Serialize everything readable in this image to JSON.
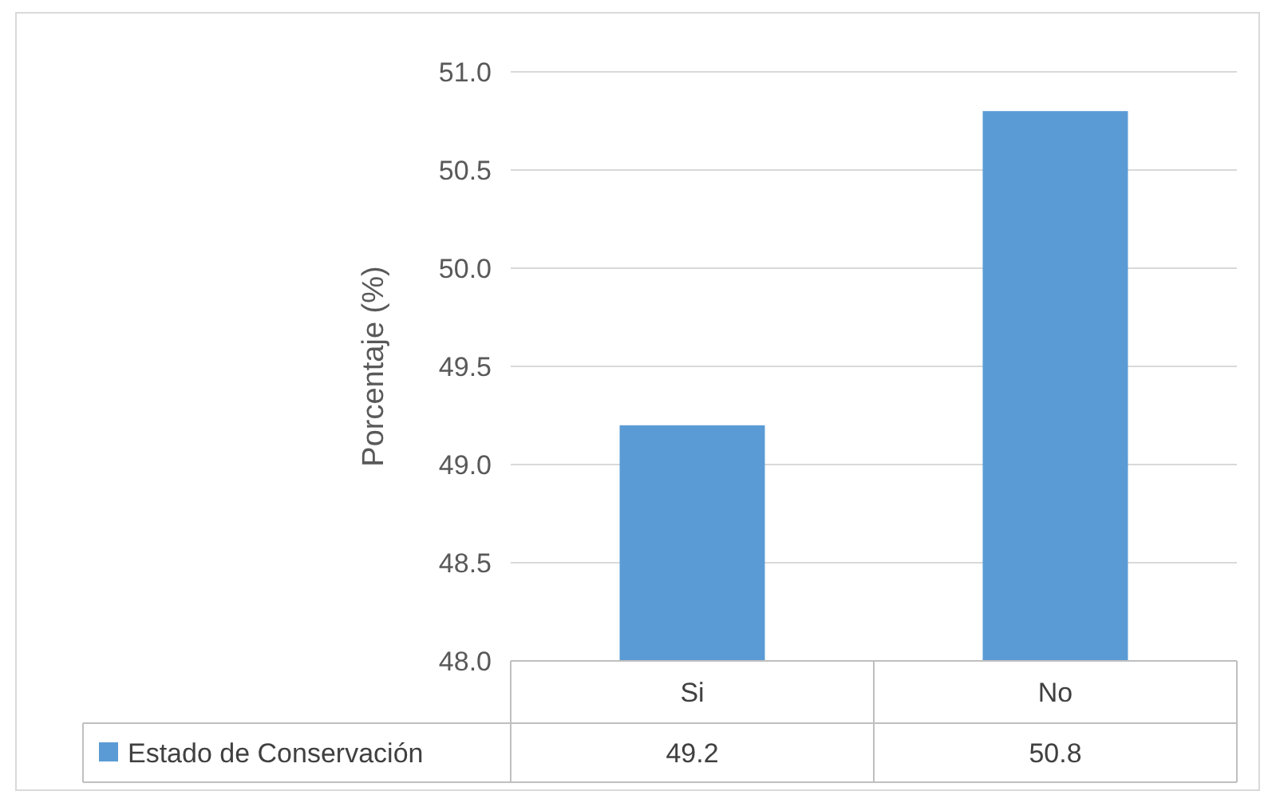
{
  "chart_data": {
    "type": "bar",
    "ylabel": "Porcentaje (%)",
    "categories": [
      "Si",
      "No"
    ],
    "series": [
      {
        "name": "Estado de Conservación",
        "color": "#5b9bd5",
        "values": [
          49.2,
          50.8
        ]
      }
    ],
    "ylim": [
      48,
      51
    ],
    "yticks": [
      {
        "value": 48,
        "label": "48.0"
      },
      48.5,
      {
        "value": 49,
        "label": "49.0"
      },
      49.5,
      {
        "value": 50,
        "label": "50.0"
      },
      50.5,
      {
        "value": 51,
        "label": "51.0"
      }
    ],
    "grid": "y",
    "legend": "bottom",
    "data_labels": true
  }
}
